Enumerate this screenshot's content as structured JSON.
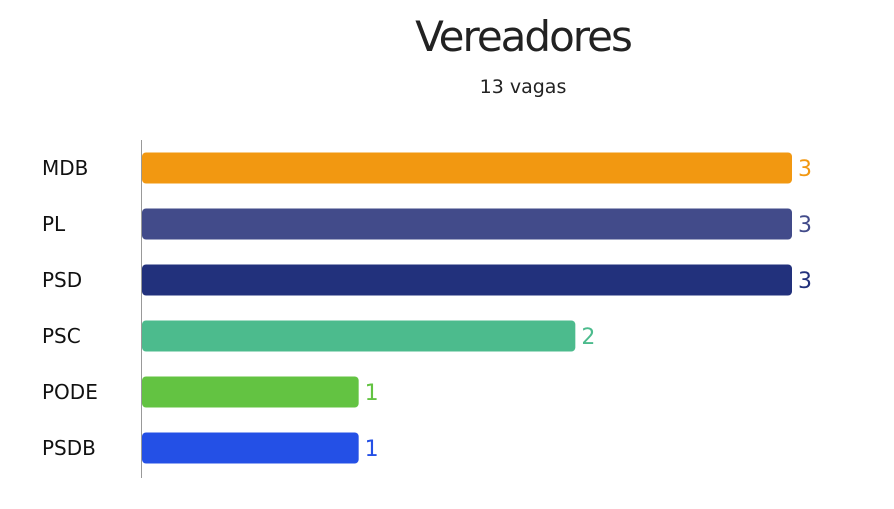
{
  "chart_data": {
    "type": "bar",
    "orientation": "horizontal",
    "title": "Vereadores",
    "subtitle": "13 vagas",
    "categories": [
      "MDB",
      "PL",
      "PSD",
      "PSC",
      "PODE",
      "PSDB"
    ],
    "values": [
      3,
      3,
      3,
      2,
      1,
      1
    ],
    "colors": [
      "#F29811",
      "#424B8A",
      "#22317C",
      "#4CBB8D",
      "#63C342",
      "#2450E6"
    ],
    "xlim": [
      0,
      3
    ],
    "grid": false,
    "legend": "none"
  }
}
